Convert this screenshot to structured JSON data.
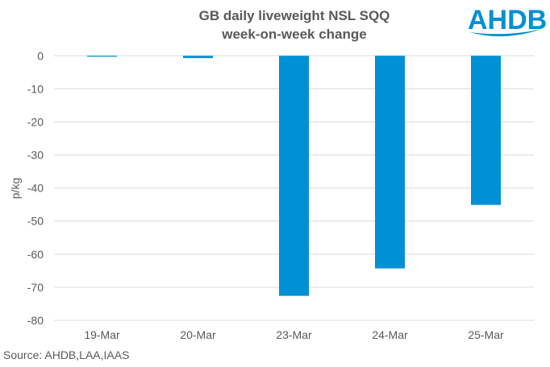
{
  "chart_data": {
    "type": "bar",
    "title": [
      "GB daily liveweight NSL SQQ",
      "week-on-week change"
    ],
    "xlabel": "",
    "ylabel": "p/kg",
    "ylim": [
      -80,
      0
    ],
    "yticks": [
      0,
      -10,
      -20,
      -30,
      -40,
      -50,
      -60,
      -70,
      -80
    ],
    "ytick_labels": [
      "0",
      "-10",
      "-20",
      "-30",
      "-40",
      "-50",
      "-60",
      "-70",
      "-80"
    ],
    "categories": [
      "19-Mar",
      "20-Mar",
      "23-Mar",
      "24-Mar",
      "25-Mar"
    ],
    "values": [
      -0.3,
      -0.7,
      -72.6,
      -64.3,
      -45.1
    ],
    "grid": true,
    "bar_color": "#0090d4"
  },
  "source": "Source: AHDB,LAA,IAAS",
  "logo_text": "AHDB"
}
